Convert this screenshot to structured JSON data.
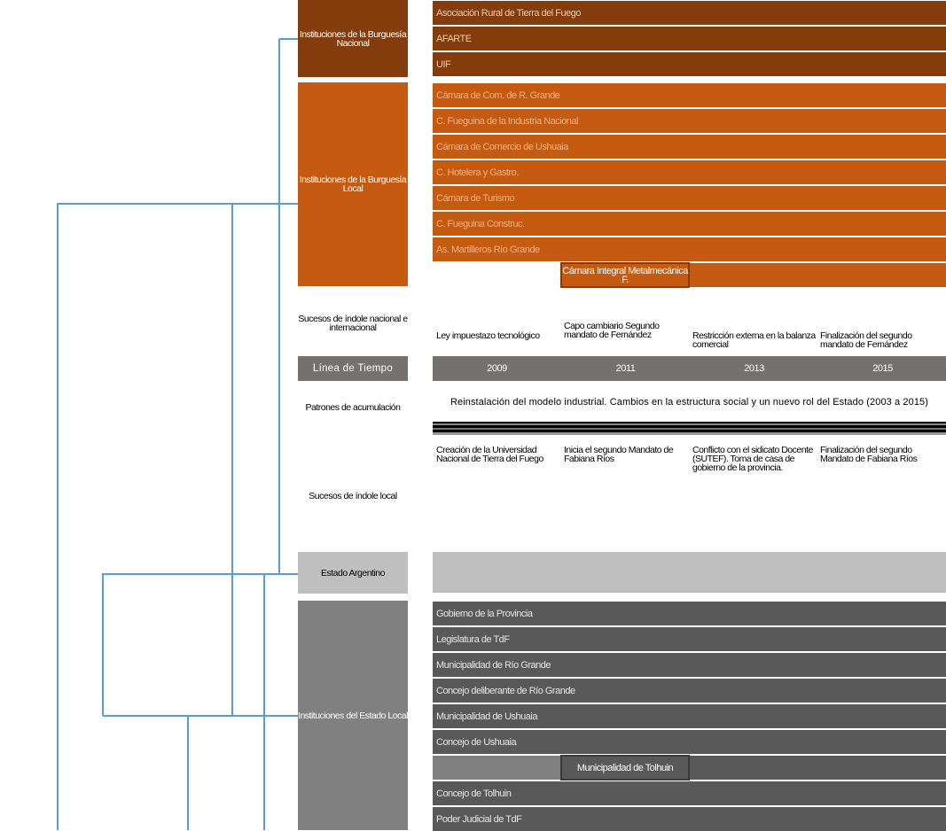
{
  "colors": {
    "burguesia_nacional": "#843C0C",
    "burguesia_local": "#C55A11",
    "timeline": "#757171",
    "estado_argentino": "#BFBFBF",
    "estado_local_rows": "#595959",
    "estado_local_label": "#808080",
    "connector": "#5B9BD5"
  },
  "left_labels": {
    "burguesia_nacional": "Instituciones de la Burguesía Nacional",
    "burguesia_local": "Instituciones de la Burguesía Local",
    "sucesos_nacional": "Sucesos de índole nacional e internacional",
    "linea_tiempo": "Línea de Tiempo",
    "patrones": "Patrones de acumulación",
    "sucesos_local": "Sucesos de índole local",
    "estado_argentino": "Estado Argentino",
    "estado_local": "Instituciones del Estado Local"
  },
  "burguesia_nacional": [
    "Asociación Rural de Tierra del Fuego",
    "AFARTE",
    "UIF"
  ],
  "burguesia_local": [
    "Cámara de Com. de R. Grande",
    "C. Fueguina de la Industria Nacional",
    "Cámara de Comercio de Ushuaia",
    "C. Hotelera y Gastro.",
    "Cámara de Turismo",
    "C. Fueguina Construc.",
    "As. Martilleros Río Grande"
  ],
  "burguesia_local_special": "Cámara Integral Metalmecánica F.",
  "national_events": [
    "Ley impuestazo tecnológico",
    "Capo cambiario Segundo mandato de Fernández",
    "Restricción externa en la balanza comercial",
    "Finalización del segundo mandato de Fernández"
  ],
  "years": [
    "2009",
    "2011",
    "2013",
    "2015"
  ],
  "patron": "Reinstalación del modelo industrial. Cambios en la estructura social y un nuevo rol del Estado (2003 a 2015)",
  "local_events": [
    "Creación de la Universidad Nacional de Tierra del Fuego",
    "Inicia el segundo Mandato de Fabiana Ríos",
    "Conflicto con el sidicato Docente (SUTEF). Toma de casa de gobierno de la provincia.",
    "Finalización del segundo Mandato de Fabiana Ríos"
  ],
  "estado_local": [
    "Gobierno de la Provincia",
    "Legislatura de TdF",
    "Municipalidad de Río Grande",
    "Concejo deliberante de Río Grande",
    "Municipalidad de Ushuaia",
    "Concejo de Ushuaia"
  ],
  "estado_local_special": "Municipalidad de Tolhuin",
  "estado_local_after": [
    "Concejo de Tolhuin",
    "Poder Judicial de TdF"
  ]
}
